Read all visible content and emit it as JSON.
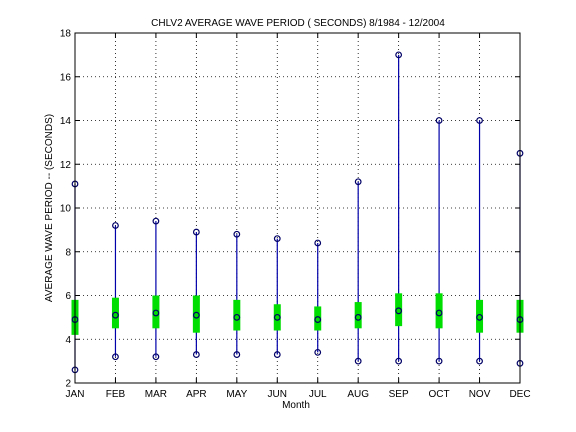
{
  "chart_data": {
    "type": "box",
    "title": "CHLV2  AVERAGE WAVE PERIOD ( SECONDS) 8/1984 - 12/2004",
    "xlabel": "Month",
    "ylabel": "AVERAGE WAVE PERIOD -- (SECONDS)",
    "categories": [
      "JAN",
      "FEB",
      "MAR",
      "APR",
      "MAY",
      "JUN",
      "JUL",
      "AUG",
      "SEP",
      "OCT",
      "NOV",
      "DEC"
    ],
    "ylim": [
      2,
      18
    ],
    "yticks": [
      2,
      4,
      6,
      8,
      10,
      12,
      14,
      16,
      18
    ],
    "grid": true,
    "min": [
      2.6,
      3.2,
      3.2,
      3.3,
      3.3,
      3.3,
      3.4,
      3.0,
      3.0,
      3.0,
      3.0,
      2.9
    ],
    "q1": [
      4.2,
      4.5,
      4.5,
      4.3,
      4.4,
      4.4,
      4.4,
      4.5,
      4.6,
      4.5,
      4.3,
      4.3
    ],
    "median": [
      4.9,
      5.1,
      5.2,
      5.1,
      5.0,
      5.0,
      4.9,
      5.0,
      5.3,
      5.2,
      5.0,
      4.9
    ],
    "q3": [
      5.8,
      5.9,
      6.0,
      6.0,
      5.8,
      5.6,
      5.5,
      5.7,
      6.1,
      6.1,
      5.8,
      5.8
    ],
    "max": [
      11.1,
      9.2,
      9.4,
      8.9,
      8.8,
      8.6,
      8.4,
      11.2,
      17.0,
      14.0,
      14.0,
      12.5
    ],
    "colors": {
      "whisker": "#0000aa",
      "box": "#00dd00",
      "marker": "#000066",
      "grid": "#000000"
    }
  }
}
